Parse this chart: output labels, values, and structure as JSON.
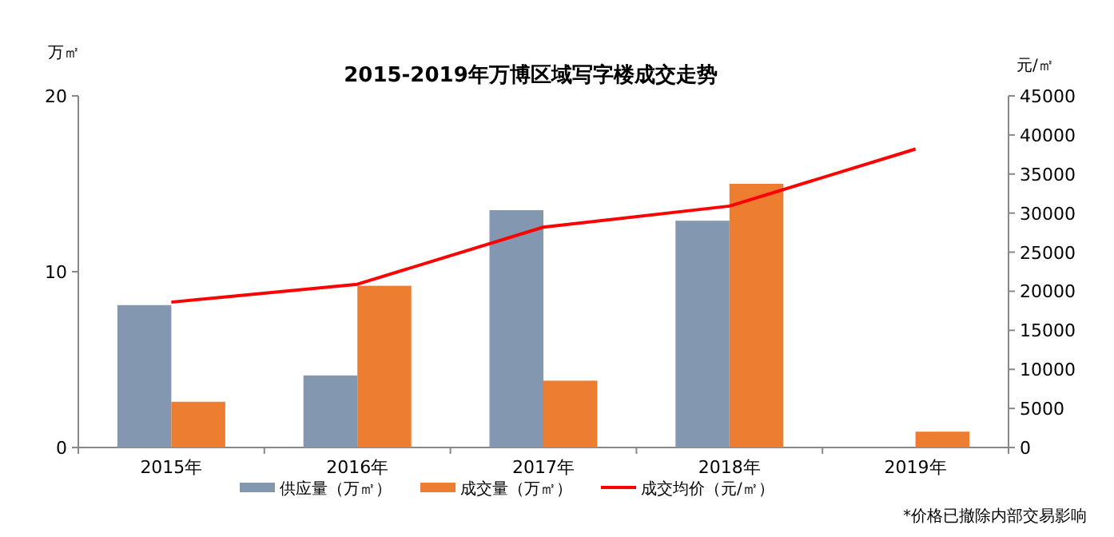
{
  "chart_data": {
    "type": "bar",
    "title": "2015-2019年万博区域写字楼成交走势",
    "ylabel": "万㎡",
    "y2label": "元/㎡",
    "categories": [
      "2015年",
      "2016年",
      "2017年",
      "2018年",
      "2019年"
    ],
    "series": [
      {
        "name": "供应量（万㎡）",
        "color": "#8497b0",
        "values": [
          8.1,
          4.1,
          13.5,
          12.9,
          null
        ]
      },
      {
        "name": "成交量（万㎡）",
        "color": "#ed7d31",
        "values": [
          2.6,
          9.2,
          3.8,
          15.0,
          0.9
        ]
      },
      {
        "name": "成交均价（元/㎡）",
        "type": "line",
        "axis": "y2",
        "color": "#ff0000",
        "marker": "none",
        "values": [
          18600,
          20900,
          28200,
          30900,
          38200
        ]
      }
    ],
    "ylim": [
      0,
      20
    ],
    "yticks": [
      0,
      10,
      20
    ],
    "y2lim": [
      0,
      45000
    ],
    "y2ticks": [
      0,
      5000,
      10000,
      15000,
      20000,
      25000,
      30000,
      35000,
      40000,
      45000
    ],
    "grid": false,
    "legend": "bottom",
    "annotations": [
      "*价格已撤除内部交易影响"
    ]
  }
}
